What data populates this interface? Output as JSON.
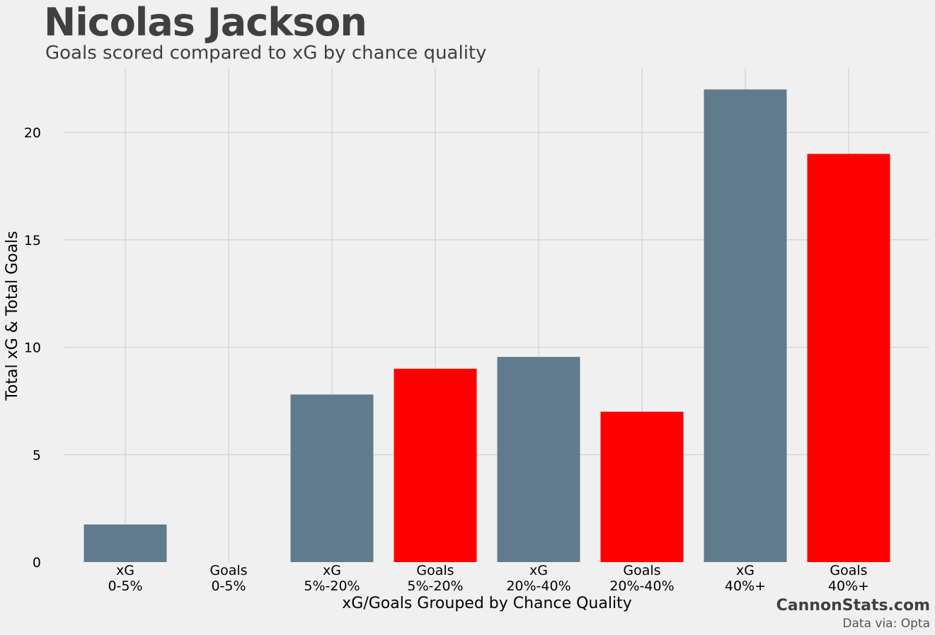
{
  "chart_data": {
    "type": "bar",
    "title": "Nicolas Jackson",
    "subtitle": "Goals scored compared to xG by chance quality",
    "xlabel": "xG/Goals Grouped by Chance Quality",
    "ylabel": "Total xG & Total Goals",
    "ylim": [
      0,
      23
    ],
    "yticks": [
      0,
      5,
      10,
      15,
      20
    ],
    "grid": true,
    "categories": [
      [
        "xG",
        "0-5%"
      ],
      [
        "Goals",
        "0-5%"
      ],
      [
        "xG",
        "5%-20%"
      ],
      [
        "Goals",
        "5%-20%"
      ],
      [
        "xG",
        "20%-40%"
      ],
      [
        "Goals",
        "20%-40%"
      ],
      [
        "xG",
        "40%+"
      ],
      [
        "Goals",
        "40%+"
      ]
    ],
    "values": [
      1.75,
      0,
      7.8,
      9,
      9.55,
      7,
      22,
      19
    ],
    "colors": [
      "#607b8d",
      "#ff0000",
      "#607b8d",
      "#ff0000",
      "#607b8d",
      "#ff0000",
      "#607b8d",
      "#ff0000"
    ]
  },
  "footer": {
    "brand": "CannonStats.com",
    "source": "Data via: Opta"
  }
}
